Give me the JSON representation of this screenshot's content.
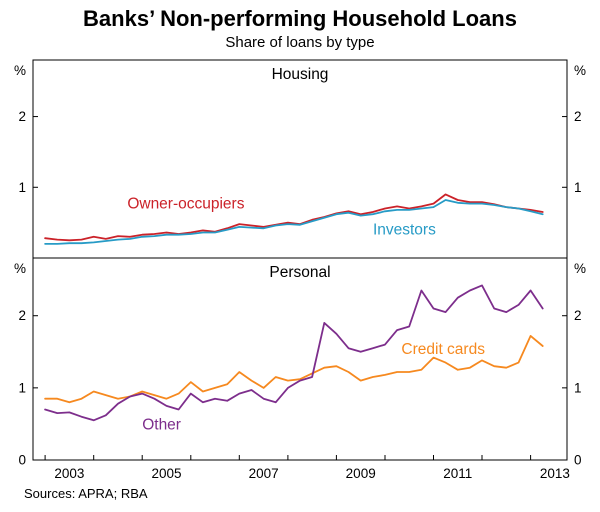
{
  "title": "Banks’ Non-performing Household Loans",
  "subtitle": "Share of loans by type",
  "footer": {
    "sources": "Sources: APRA; RBA"
  },
  "chart_data": {
    "type": "line",
    "x_start": 2003.0,
    "x_step": 0.25,
    "x_domain": [
      2002.75,
      2013.75
    ],
    "x_tick_labels": [
      2003,
      2005,
      2007,
      2009,
      2011,
      2013
    ],
    "unit": "%",
    "panels": [
      {
        "label": "Housing",
        "unit": "%",
        "ylim": [
          0,
          2.8
        ],
        "yticks": [
          1,
          2
        ],
        "series": [
          {
            "name": "Owner-occupiers",
            "color": "#cb2229",
            "label_at": [
              2005.9,
              0.7
            ],
            "values": [
              0.28,
              0.26,
              0.25,
              0.26,
              0.3,
              0.27,
              0.31,
              0.3,
              0.33,
              0.34,
              0.36,
              0.34,
              0.36,
              0.39,
              0.37,
              0.42,
              0.48,
              0.46,
              0.44,
              0.47,
              0.5,
              0.48,
              0.54,
              0.58,
              0.63,
              0.66,
              0.62,
              0.65,
              0.7,
              0.73,
              0.7,
              0.73,
              0.77,
              0.9,
              0.82,
              0.79,
              0.79,
              0.76,
              0.72,
              0.7,
              0.68,
              0.65
            ]
          },
          {
            "name": "Investors",
            "color": "#279bc6",
            "label_at": [
              2010.4,
              0.33
            ],
            "values": [
              0.2,
              0.2,
              0.21,
              0.21,
              0.22,
              0.24,
              0.26,
              0.27,
              0.3,
              0.31,
              0.33,
              0.33,
              0.34,
              0.36,
              0.36,
              0.4,
              0.44,
              0.43,
              0.42,
              0.46,
              0.48,
              0.47,
              0.52,
              0.57,
              0.62,
              0.64,
              0.6,
              0.62,
              0.66,
              0.68,
              0.68,
              0.7,
              0.72,
              0.82,
              0.78,
              0.77,
              0.77,
              0.75,
              0.72,
              0.7,
              0.66,
              0.62
            ]
          }
        ]
      },
      {
        "label": "Personal",
        "unit": "%",
        "ylim": [
          0,
          2.8
        ],
        "yticks": [
          0,
          1,
          2
        ],
        "series": [
          {
            "name": "Credit cards",
            "color": "#f6891f",
            "label_at": [
              2011.2,
              1.47
            ],
            "values": [
              0.85,
              0.85,
              0.8,
              0.85,
              0.95,
              0.9,
              0.85,
              0.88,
              0.95,
              0.9,
              0.85,
              0.92,
              1.08,
              0.95,
              1.0,
              1.05,
              1.22,
              1.1,
              1.0,
              1.15,
              1.1,
              1.12,
              1.2,
              1.28,
              1.3,
              1.22,
              1.1,
              1.15,
              1.18,
              1.22,
              1.22,
              1.25,
              1.42,
              1.35,
              1.25,
              1.28,
              1.38,
              1.3,
              1.28,
              1.35,
              1.72,
              1.58
            ]
          },
          {
            "name": "Other",
            "color": "#7d2e8c",
            "label_at": [
              2005.4,
              0.42
            ],
            "values": [
              0.7,
              0.65,
              0.66,
              0.6,
              0.55,
              0.62,
              0.78,
              0.88,
              0.92,
              0.85,
              0.75,
              0.7,
              0.92,
              0.8,
              0.85,
              0.82,
              0.92,
              0.97,
              0.85,
              0.8,
              1.0,
              1.1,
              1.15,
              1.9,
              1.75,
              1.55,
              1.5,
              1.55,
              1.6,
              1.8,
              1.85,
              2.35,
              2.1,
              2.05,
              2.25,
              2.35,
              2.42,
              2.1,
              2.05,
              2.15,
              2.35,
              2.1
            ]
          }
        ]
      }
    ]
  }
}
